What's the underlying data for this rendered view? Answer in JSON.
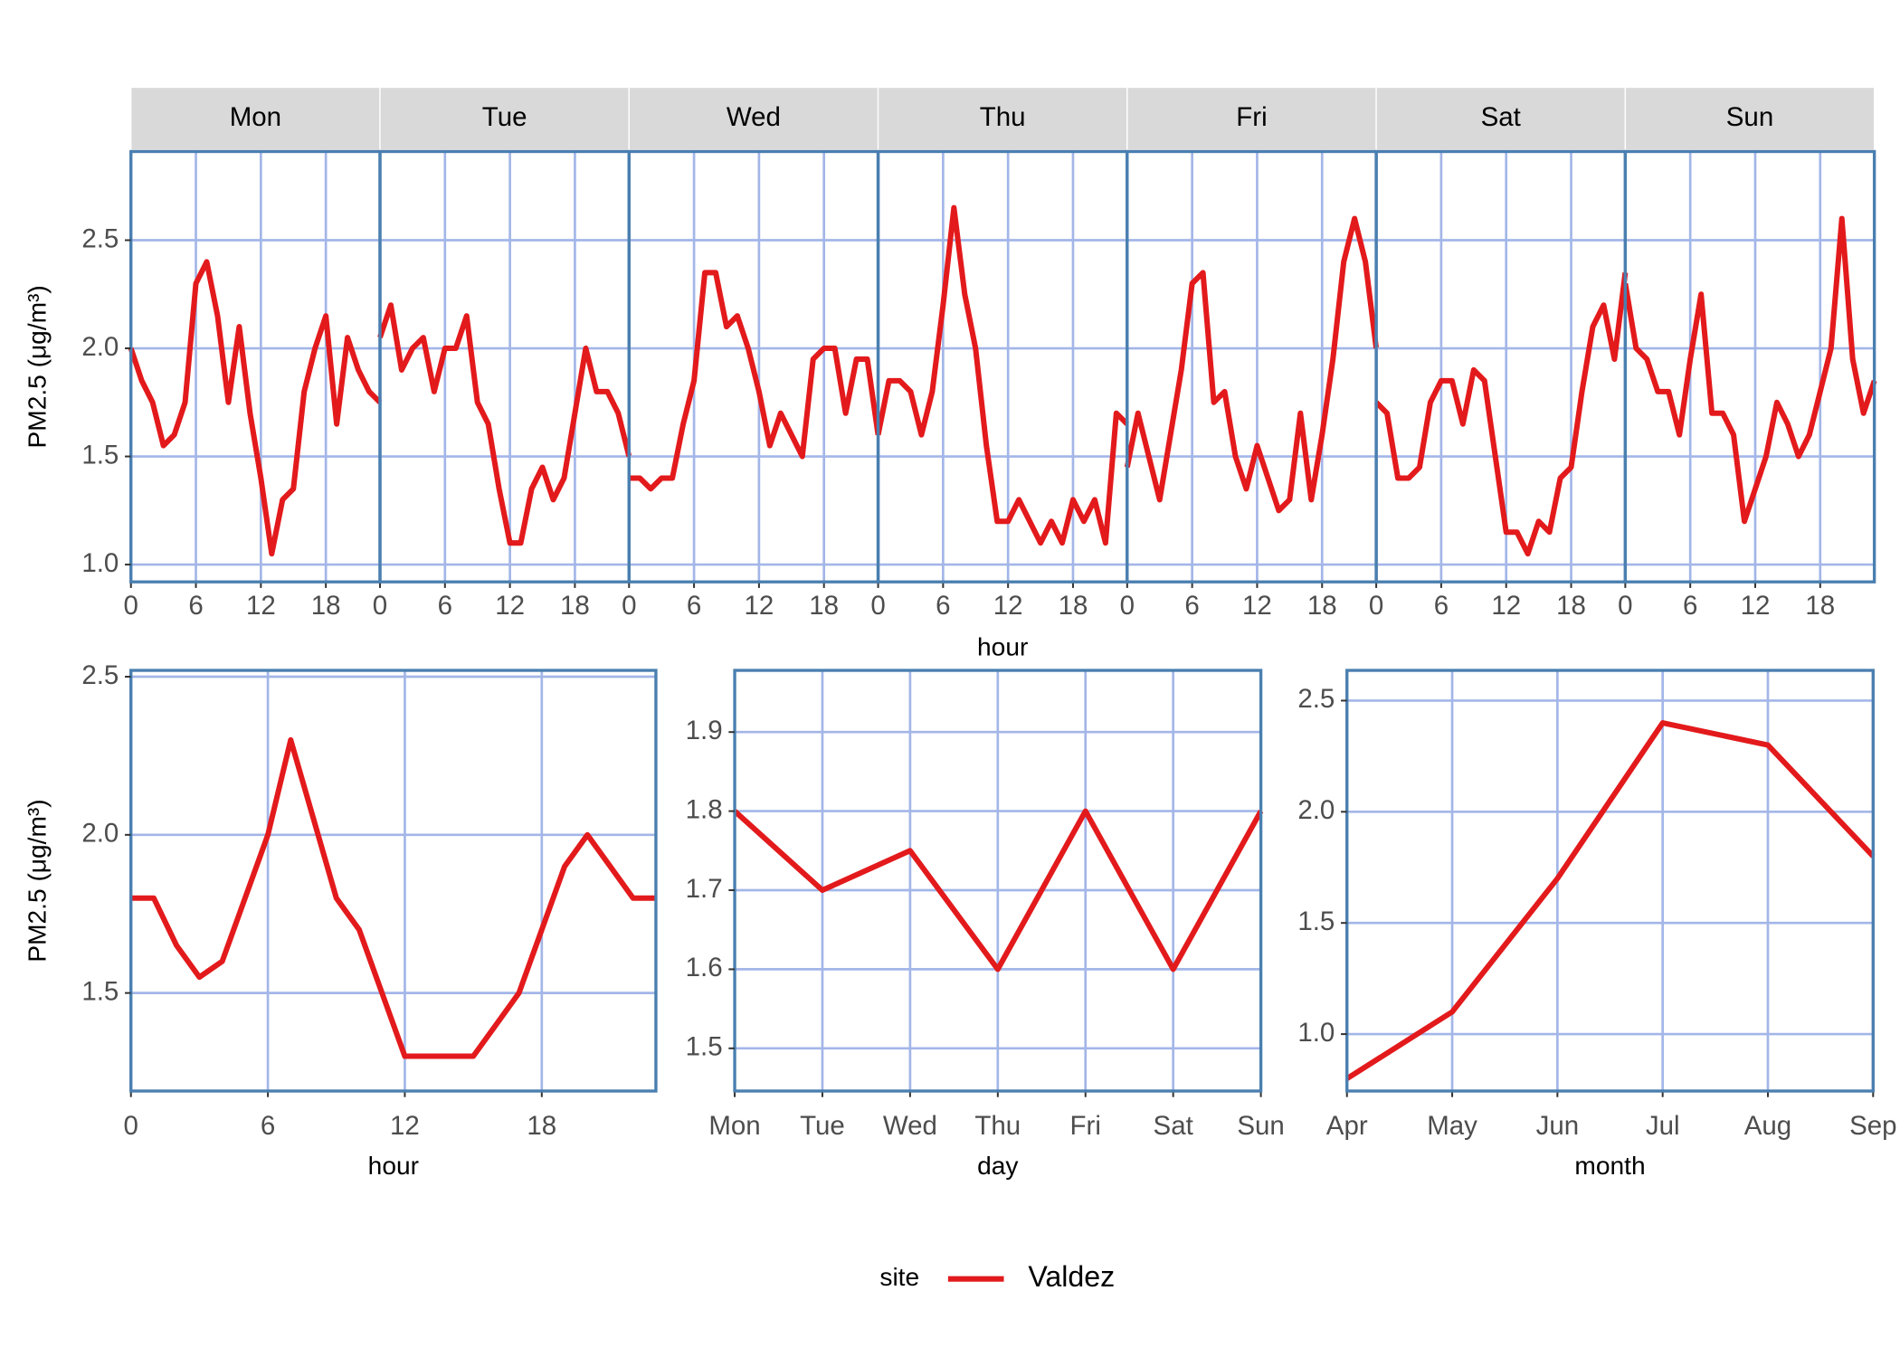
{
  "chart_data": [
    {
      "type": "line",
      "xlabel": "hour",
      "ylabel": "PM2.5 (μg/m³)",
      "color": "#e31a1c",
      "x": [
        0,
        1,
        2,
        3,
        4,
        5,
        6,
        7,
        8,
        9,
        10,
        11,
        12,
        13,
        14,
        15,
        16,
        17,
        18,
        19,
        20,
        21,
        22,
        23
      ],
      "xlim": [
        0,
        23
      ],
      "xticks": [
        0,
        6,
        12,
        18
      ],
      "ylim": [
        0.92,
        2.91
      ],
      "yticks": [
        {
          "value": 1,
          "label": "1.0"
        },
        1.5,
        {
          "value": 2,
          "label": "2.0"
        },
        2.5
      ],
      "grid": true,
      "facets": [
        {
          "label": "Mon",
          "values": [
            2.0,
            1.85,
            1.75,
            1.55,
            1.6,
            1.75,
            2.3,
            2.4,
            2.15,
            1.75,
            2.1,
            1.7,
            1.4,
            1.05,
            1.3,
            1.35,
            1.8,
            2.0,
            2.15,
            1.65,
            2.05,
            1.9,
            1.8,
            1.75
          ]
        },
        {
          "label": "Tue",
          "values": [
            2.05,
            2.2,
            1.9,
            2.0,
            2.05,
            1.8,
            2.0,
            2.0,
            2.15,
            1.75,
            1.65,
            1.35,
            1.1,
            1.1,
            1.35,
            1.45,
            1.3,
            1.4,
            1.7,
            2.0,
            1.8,
            1.8,
            1.7,
            1.5
          ]
        },
        {
          "label": "Wed",
          "values": [
            1.4,
            1.4,
            1.35,
            1.4,
            1.4,
            1.65,
            1.85,
            2.35,
            2.35,
            2.1,
            2.15,
            2.0,
            1.8,
            1.55,
            1.7,
            1.6,
            1.5,
            1.95,
            2.0,
            2.0,
            1.7,
            1.95,
            1.95,
            1.6
          ]
        },
        {
          "label": "Thu",
          "values": [
            1.6,
            1.85,
            1.85,
            1.8,
            1.6,
            1.8,
            2.2,
            2.65,
            2.25,
            2.0,
            1.55,
            1.2,
            1.2,
            1.3,
            1.2,
            1.1,
            1.2,
            1.1,
            1.3,
            1.2,
            1.3,
            1.1,
            1.7,
            1.65
          ]
        },
        {
          "label": "Fri",
          "values": [
            1.45,
            1.7,
            1.5,
            1.3,
            1.6,
            1.9,
            2.3,
            2.35,
            1.75,
            1.8,
            1.5,
            1.35,
            1.55,
            1.4,
            1.25,
            1.3,
            1.7,
            1.3,
            1.6,
            1.95,
            2.4,
            2.6,
            2.4,
            2.0
          ]
        },
        {
          "label": "Sat",
          "values": [
            1.75,
            1.7,
            1.4,
            1.4,
            1.45,
            1.75,
            1.85,
            1.85,
            1.65,
            1.9,
            1.85,
            1.5,
            1.15,
            1.15,
            1.05,
            1.2,
            1.15,
            1.4,
            1.45,
            1.8,
            2.1,
            2.2,
            1.95,
            2.35
          ]
        },
        {
          "label": "Sun",
          "values": [
            2.3,
            2.0,
            1.95,
            1.8,
            1.8,
            1.6,
            1.95,
            2.25,
            1.7,
            1.7,
            1.6,
            1.2,
            1.35,
            1.5,
            1.75,
            1.65,
            1.5,
            1.6,
            1.8,
            2.0,
            2.6,
            1.95,
            1.7,
            1.85
          ]
        }
      ]
    },
    {
      "type": "line",
      "xlabel": "hour",
      "ylabel": "PM2.5 (μg/m³)",
      "x": [
        0,
        1,
        2,
        3,
        4,
        5,
        6,
        7,
        8,
        9,
        10,
        11,
        12,
        13,
        14,
        15,
        16,
        17,
        18,
        19,
        20,
        21,
        22,
        23
      ],
      "xlim": [
        0,
        23
      ],
      "xticks": [
        0,
        6,
        12,
        18
      ],
      "ylim": [
        1.19,
        2.52
      ],
      "yticks": [
        1.5,
        {
          "value": 2,
          "label": "2.0"
        },
        2.5
      ],
      "grid": true,
      "series": [
        {
          "name": "Valdez",
          "color": "#e31a1c",
          "values": [
            1.8,
            1.8,
            1.65,
            1.55,
            1.6,
            1.8,
            2.0,
            2.3,
            2.05,
            1.8,
            1.7,
            1.5,
            1.3,
            1.3,
            1.3,
            1.3,
            1.4,
            1.5,
            1.7,
            1.9,
            2.0,
            1.9,
            1.8,
            1.8
          ]
        }
      ]
    },
    {
      "type": "line",
      "xlabel": "day",
      "categories": [
        "Mon",
        "Tue",
        "Wed",
        "Thu",
        "Fri",
        "Sat",
        "Sun"
      ],
      "ylim": [
        1.446,
        1.978
      ],
      "yticks": [
        1.5,
        1.6,
        1.7,
        1.8,
        1.9
      ],
      "grid": true,
      "series": [
        {
          "name": "Valdez",
          "color": "#e31a1c",
          "values": [
            1.8,
            1.7,
            1.75,
            1.6,
            1.8,
            1.6,
            1.8
          ]
        }
      ]
    },
    {
      "type": "line",
      "xlabel": "month",
      "categories": [
        "Apr",
        "May",
        "Jun",
        "Jul",
        "Aug",
        "Sep"
      ],
      "ylim": [
        0.744,
        2.636
      ],
      "yticks": [
        {
          "value": 1,
          "label": "1.0"
        },
        1.5,
        {
          "value": 2,
          "label": "2.0"
        },
        2.5
      ],
      "grid": true,
      "series": [
        {
          "name": "Valdez",
          "color": "#e31a1c",
          "values": [
            0.8,
            1.1,
            1.7,
            2.4,
            2.3,
            1.8
          ]
        }
      ]
    }
  ],
  "legend": {
    "title": "site"
  }
}
